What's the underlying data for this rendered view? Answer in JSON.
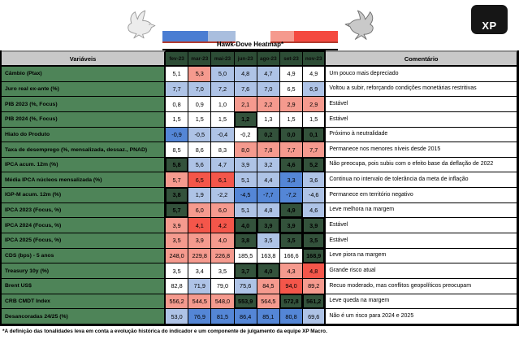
{
  "branding": {
    "logo_text": "XP"
  },
  "chart_data": {
    "type": "heatmap",
    "title": "Hawk-Dove Heatmap*",
    "columns_header": "Variáveis",
    "comment_header": "Comentário",
    "columns": [
      "fev-23",
      "mar-23",
      "mai-23",
      "jun-23",
      "ago-23",
      "set-23",
      "nov-23"
    ],
    "legend": {
      "dove_bar_colors": [
        "#4a7dd2",
        "#a9bede"
      ],
      "hawk_bar_colors": [
        "#f59a8e",
        "#f4493f"
      ]
    },
    "cell_palette": {
      "w": "#ffffff",
      "b1": "#aec3e6",
      "b2": "#5486d6",
      "r1": "#f59a8e",
      "r2": "#f4564a",
      "g": "#33523b"
    },
    "rows": [
      {
        "label": "Câmbio (Ptax)",
        "values": [
          "5,1",
          "5,3",
          "5,0",
          "4,8",
          "4,7",
          "4,9",
          "4,9"
        ],
        "colors": [
          "w",
          "r1",
          "b1",
          "b1",
          "b1",
          "w",
          "w"
        ],
        "comment": "Um pouco mais depreciado"
      },
      {
        "label": "Juro real ex-ante (%)",
        "values": [
          "7,7",
          "7,0",
          "7,2",
          "7,6",
          "7,0",
          "6,5",
          "6,9"
        ],
        "colors": [
          "b1",
          "b1",
          "b1",
          "b1",
          "b1",
          "w",
          "b1"
        ],
        "comment": "Voltou a subir, reforçando condições monetárias restritivas"
      },
      {
        "label": "PIB 2023 (%, Focus)",
        "values": [
          "0,8",
          "0,9",
          "1,0",
          "2,1",
          "2,2",
          "2,9",
          "2,9"
        ],
        "colors": [
          "w",
          "w",
          "w",
          "r1",
          "r1",
          "r1",
          "r1"
        ],
        "comment": "Estável"
      },
      {
        "label": "PIB 2024 (%, Focus)",
        "values": [
          "1,5",
          "1,5",
          "1,5",
          "1,2",
          "1,3",
          "1,5",
          "1,5"
        ],
        "colors": [
          "w",
          "w",
          "w",
          "g",
          "w",
          "w",
          "w"
        ],
        "comment": "Estável"
      },
      {
        "label": "Hiato do Produto",
        "values": [
          "-0,9",
          "-0,5",
          "-0,4",
          "-0,2",
          "0,2",
          "0,0",
          "0,1"
        ],
        "colors": [
          "b2",
          "b1",
          "b1",
          "w",
          "g",
          "g",
          "g"
        ],
        "comment": "Próximo à neutralidade"
      },
      {
        "label": "Taxa de desemprego (%, mensalizada, dessaz., PNAD)",
        "values": [
          "8,5",
          "8,6",
          "8,3",
          "8,0",
          "7,8",
          "7,7",
          "7,7"
        ],
        "colors": [
          "w",
          "w",
          "w",
          "r1",
          "r1",
          "r1",
          "r1"
        ],
        "comment": "Permanece nos menores níveis desde 2015"
      },
      {
        "label": "IPCA acum. 12m (%)",
        "values": [
          "5,8",
          "5,6",
          "4,7",
          "3,9",
          "3,2",
          "4,6",
          "5,2"
        ],
        "colors": [
          "g",
          "b1",
          "b1",
          "b1",
          "b1",
          "g",
          "g"
        ],
        "comment": "Não preocupa, pois subiu com o efeito base da deflação de 2022"
      },
      {
        "label": "Média IPCA núcleos mensalizada (%)",
        "values": [
          "5,7",
          "6,5",
          "6,1",
          "5,1",
          "4,4",
          "3,3",
          "3,6"
        ],
        "colors": [
          "r1",
          "r2",
          "r2",
          "b1",
          "b1",
          "b2",
          "b1"
        ],
        "comment": "Continua no intervalo de tolerância da meta de inflação"
      },
      {
        "label": "IGP-M acum. 12m (%)",
        "values": [
          "3,8",
          "1,9",
          "-2,2",
          "-4,5",
          "-7,7",
          "-7,2",
          "-4,6"
        ],
        "colors": [
          "g",
          "b1",
          "b1",
          "b2",
          "b2",
          "b2",
          "b1"
        ],
        "comment": "Permanece em território negativo"
      },
      {
        "label": "IPCA 2023 (Focus, %)",
        "values": [
          "5,7",
          "6,0",
          "6,0",
          "5,1",
          "4,8",
          "4,9",
          "4,6"
        ],
        "colors": [
          "g",
          "r1",
          "r1",
          "b1",
          "b1",
          "g",
          "b1"
        ],
        "comment": "Leve melhora na margem"
      },
      {
        "label": "IPCA 2024 (Focus, %)",
        "values": [
          "3,9",
          "4,1",
          "4,2",
          "4,0",
          "3,9",
          "3,9",
          "3,9"
        ],
        "colors": [
          "r1",
          "r2",
          "r2",
          "g",
          "g",
          "g",
          "g"
        ],
        "comment": "Estável"
      },
      {
        "label": "IPCA 2025 (Focus, %)",
        "values": [
          "3,5",
          "3,9",
          "4,0",
          "3,8",
          "3,5",
          "3,5",
          "3,5"
        ],
        "colors": [
          "r1",
          "r1",
          "r1",
          "g",
          "b1",
          "g",
          "g"
        ],
        "comment": "Estável"
      },
      {
        "label": "CDS (bps) - 5 anos",
        "values": [
          "248,0",
          "229,8",
          "226,8",
          "185,5",
          "163,8",
          "166,6",
          "168,9"
        ],
        "colors": [
          "r1",
          "r1",
          "r1",
          "w",
          "w",
          "w",
          "g"
        ],
        "comment": "Leve piora na margem"
      },
      {
        "label": "Treasury 10y (%)",
        "values": [
          "3,5",
          "3,4",
          "3,5",
          "3,7",
          "4,0",
          "4,3",
          "4,8"
        ],
        "colors": [
          "w",
          "w",
          "w",
          "g",
          "g",
          "r1",
          "r2"
        ],
        "comment": "Grande risco atual"
      },
      {
        "label": "Brent US$",
        "values": [
          "82,8",
          "71,9",
          "79,0",
          "75,6",
          "84,5",
          "94,0",
          "89,2"
        ],
        "colors": [
          "w",
          "b1",
          "w",
          "b1",
          "r1",
          "r2",
          "r1"
        ],
        "comment": "Recuo moderado, mas conflitos geopolíticos preocupam"
      },
      {
        "label": "CRB CMDT Index",
        "values": [
          "556,2",
          "544,5",
          "548,0",
          "553,9",
          "564,5",
          "572,8",
          "561,2"
        ],
        "colors": [
          "r1",
          "r1",
          "r1",
          "g",
          "r1",
          "g",
          "g"
        ],
        "comment": "Leve queda na margem"
      },
      {
        "label": "Desancoradas 24/25 (%)",
        "values": [
          "53,0",
          "76,9",
          "81,5",
          "86,4",
          "85,1",
          "80,8",
          "69,6"
        ],
        "colors": [
          "b1",
          "b2",
          "b2",
          "b2",
          "b2",
          "b2",
          "b1"
        ],
        "comment": "Não é um risco para 2024 e 2025"
      }
    ],
    "footnote": "*A definição das tonalidades leva em conta a evolução histórica do indicador e um componente de julgamento da equipe XP Macro."
  }
}
